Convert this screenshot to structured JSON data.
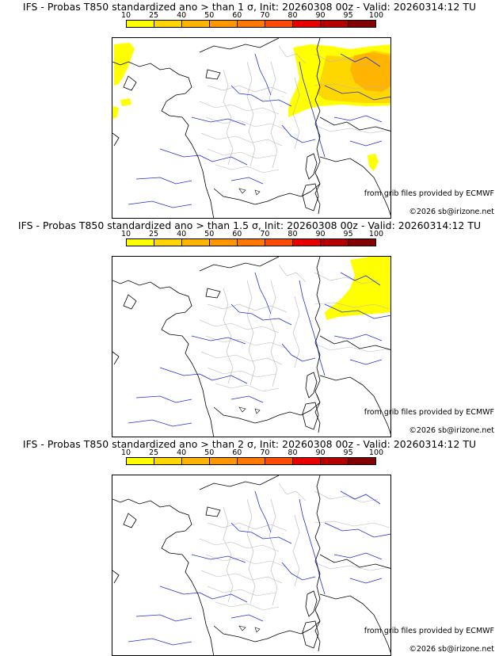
{
  "colorbar": {
    "ticks": [
      "10",
      "25",
      "40",
      "50",
      "60",
      "70",
      "80",
      "90",
      "95",
      "100"
    ],
    "colors": [
      "#ffff00",
      "#ffd700",
      "#ffb400",
      "#ff9600",
      "#ff7800",
      "#ff4b00",
      "#e60000",
      "#b40000",
      "#820000",
      "#550000"
    ]
  },
  "panels": [
    {
      "title": "IFS - Probas T850  standardized ano > than 1 σ, Init: 20260308 00z - Valid: 20260314:12 TU",
      "credit_source": "from grib files provided by ECMWF",
      "credit_copyright": "©2026 sb@irizone.net"
    },
    {
      "title": "IFS - Probas T850  standardized ano > than 1.5 σ, Init: 20260308 00z - Valid: 20260314:12 TU",
      "credit_source": "from grib files provided by ECMWF",
      "credit_copyright": "©2026 sb@irizone.net"
    },
    {
      "title": "IFS - Probas T850  standardized ano > than 2 σ, Init: 20260308 00z - Valid: 20260314:12 TU",
      "credit_source": "from grib files provided by ECMWF",
      "credit_copyright": "©2026 sb@irizone.net"
    }
  ],
  "map_layers": {
    "coastline": "coastline-icon",
    "rivers": "rivers-icon",
    "borders": "borders-icon"
  }
}
